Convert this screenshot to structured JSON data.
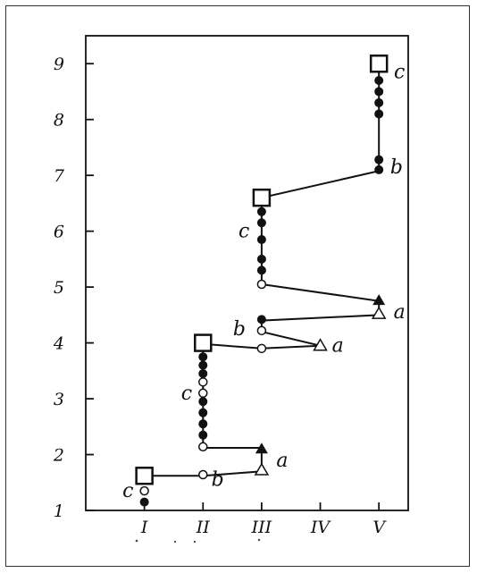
{
  "chart_data": {
    "type": "line",
    "title": "",
    "xlabel": "",
    "ylabel": "",
    "x_categories": [
      "I",
      "II",
      "III",
      "IV",
      "V"
    ],
    "y_ticks": [
      1,
      2,
      3,
      4,
      5,
      6,
      7,
      8,
      9
    ],
    "xlim": [
      0.0,
      5.5
    ],
    "ylim": [
      1.0,
      9.5
    ],
    "grid": false,
    "legend": "none",
    "colors": {
      "ink": "#111111",
      "frame": "#333333",
      "background": "#ffffff"
    },
    "path": [
      [
        1,
        1.62
      ],
      [
        2,
        1.62
      ],
      [
        3,
        1.7
      ],
      [
        3,
        2.12
      ],
      [
        2,
        2.12
      ],
      [
        2,
        3.98
      ],
      [
        3,
        3.9
      ],
      [
        4,
        3.95
      ],
      [
        3,
        4.2
      ],
      [
        3,
        4.4
      ],
      [
        5,
        4.5
      ],
      [
        5,
        4.75
      ],
      [
        3,
        5.05
      ],
      [
        3,
        6.6
      ],
      [
        5,
        7.08
      ],
      [
        5,
        9.0
      ]
    ],
    "markers": [
      {
        "shape": "square",
        "x": 1,
        "y": 1.62
      },
      {
        "shape": "square",
        "x": 2,
        "y": 4.0
      },
      {
        "shape": "square",
        "x": 3,
        "y": 6.6
      },
      {
        "shape": "square",
        "x": 5,
        "y": 9.0
      },
      {
        "shape": "open-circle",
        "x": 1,
        "y": 1.35
      },
      {
        "shape": "filled-circle",
        "x": 1,
        "y": 1.15
      },
      {
        "shape": "open-circle",
        "x": 2,
        "y": 1.64
      },
      {
        "shape": "open-triangle",
        "x": 3,
        "y": 1.72
      },
      {
        "shape": "filled-triangle",
        "x": 3,
        "y": 2.1
      },
      {
        "shape": "open-circle",
        "x": 2,
        "y": 2.14
      },
      {
        "shape": "filled-circle",
        "x": 2,
        "y": 2.35
      },
      {
        "shape": "filled-circle",
        "x": 2,
        "y": 2.55
      },
      {
        "shape": "filled-circle",
        "x": 2,
        "y": 2.75
      },
      {
        "shape": "filled-circle",
        "x": 2,
        "y": 2.95
      },
      {
        "shape": "open-circle",
        "x": 2,
        "y": 3.1
      },
      {
        "shape": "open-circle",
        "x": 2,
        "y": 3.3
      },
      {
        "shape": "filled-circle",
        "x": 2,
        "y": 3.45
      },
      {
        "shape": "filled-circle",
        "x": 2,
        "y": 3.6
      },
      {
        "shape": "filled-circle",
        "x": 2,
        "y": 3.75
      },
      {
        "shape": "open-circle",
        "x": 3,
        "y": 3.9
      },
      {
        "shape": "open-triangle",
        "x": 4,
        "y": 3.95
      },
      {
        "shape": "open-circle",
        "x": 3,
        "y": 4.22
      },
      {
        "shape": "filled-circle",
        "x": 3,
        "y": 4.42
      },
      {
        "shape": "open-triangle",
        "x": 5,
        "y": 4.52
      },
      {
        "shape": "filled-triangle",
        "x": 5,
        "y": 4.76
      },
      {
        "shape": "open-circle",
        "x": 3,
        "y": 5.05
      },
      {
        "shape": "filled-circle",
        "x": 3,
        "y": 5.3
      },
      {
        "shape": "filled-circle",
        "x": 3,
        "y": 5.5
      },
      {
        "shape": "filled-circle",
        "x": 3,
        "y": 5.85
      },
      {
        "shape": "filled-circle",
        "x": 3,
        "y": 6.15
      },
      {
        "shape": "filled-circle",
        "x": 3,
        "y": 6.35
      },
      {
        "shape": "filled-circle",
        "x": 5,
        "y": 7.1
      },
      {
        "shape": "filled-circle",
        "x": 5,
        "y": 7.28
      },
      {
        "shape": "filled-circle",
        "x": 5,
        "y": 8.1
      },
      {
        "shape": "filled-circle",
        "x": 5,
        "y": 8.3
      },
      {
        "shape": "filled-circle",
        "x": 5,
        "y": 8.5
      },
      {
        "shape": "filled-circle",
        "x": 5,
        "y": 8.7
      }
    ],
    "annotations": [
      {
        "text": "c",
        "x": 0.72,
        "y": 1.35
      },
      {
        "text": "b",
        "x": 2.25,
        "y": 1.55
      },
      {
        "text": "a",
        "x": 3.35,
        "y": 1.9
      },
      {
        "text": "c",
        "x": 1.72,
        "y": 3.1
      },
      {
        "text": "a",
        "x": 4.3,
        "y": 3.95
      },
      {
        "text": "b",
        "x": 2.62,
        "y": 4.25
      },
      {
        "text": "a",
        "x": 5.35,
        "y": 4.55
      },
      {
        "text": "c",
        "x": 2.7,
        "y": 6.0
      },
      {
        "text": "b",
        "x": 5.3,
        "y": 7.15
      },
      {
        "text": "c",
        "x": 5.35,
        "y": 8.85
      }
    ]
  }
}
